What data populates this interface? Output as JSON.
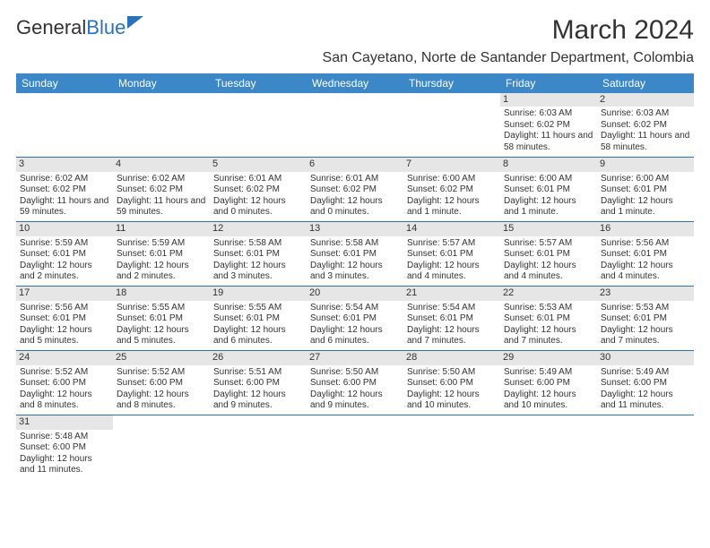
{
  "logo": {
    "part1": "General",
    "part2": "Blue"
  },
  "title": "March 2024",
  "location": "San Cayetano, Norte de Santander Department, Colombia",
  "colors": {
    "header_bg": "#3b87c8",
    "header_text": "#ffffff",
    "daynum_bg": "#e6e6e6",
    "row_border": "#2a73b8",
    "text": "#333333",
    "logo_blue": "#2a73b8"
  },
  "weekdays": [
    "Sunday",
    "Monday",
    "Tuesday",
    "Wednesday",
    "Thursday",
    "Friday",
    "Saturday"
  ],
  "weeks": [
    [
      {
        "n": "",
        "sr": "",
        "ss": "",
        "dl": ""
      },
      {
        "n": "",
        "sr": "",
        "ss": "",
        "dl": ""
      },
      {
        "n": "",
        "sr": "",
        "ss": "",
        "dl": ""
      },
      {
        "n": "",
        "sr": "",
        "ss": "",
        "dl": ""
      },
      {
        "n": "",
        "sr": "",
        "ss": "",
        "dl": ""
      },
      {
        "n": "1",
        "sr": "Sunrise: 6:03 AM",
        "ss": "Sunset: 6:02 PM",
        "dl": "Daylight: 11 hours and 58 minutes."
      },
      {
        "n": "2",
        "sr": "Sunrise: 6:03 AM",
        "ss": "Sunset: 6:02 PM",
        "dl": "Daylight: 11 hours and 58 minutes."
      }
    ],
    [
      {
        "n": "3",
        "sr": "Sunrise: 6:02 AM",
        "ss": "Sunset: 6:02 PM",
        "dl": "Daylight: 11 hours and 59 minutes."
      },
      {
        "n": "4",
        "sr": "Sunrise: 6:02 AM",
        "ss": "Sunset: 6:02 PM",
        "dl": "Daylight: 11 hours and 59 minutes."
      },
      {
        "n": "5",
        "sr": "Sunrise: 6:01 AM",
        "ss": "Sunset: 6:02 PM",
        "dl": "Daylight: 12 hours and 0 minutes."
      },
      {
        "n": "6",
        "sr": "Sunrise: 6:01 AM",
        "ss": "Sunset: 6:02 PM",
        "dl": "Daylight: 12 hours and 0 minutes."
      },
      {
        "n": "7",
        "sr": "Sunrise: 6:00 AM",
        "ss": "Sunset: 6:02 PM",
        "dl": "Daylight: 12 hours and 1 minute."
      },
      {
        "n": "8",
        "sr": "Sunrise: 6:00 AM",
        "ss": "Sunset: 6:01 PM",
        "dl": "Daylight: 12 hours and 1 minute."
      },
      {
        "n": "9",
        "sr": "Sunrise: 6:00 AM",
        "ss": "Sunset: 6:01 PM",
        "dl": "Daylight: 12 hours and 1 minute."
      }
    ],
    [
      {
        "n": "10",
        "sr": "Sunrise: 5:59 AM",
        "ss": "Sunset: 6:01 PM",
        "dl": "Daylight: 12 hours and 2 minutes."
      },
      {
        "n": "11",
        "sr": "Sunrise: 5:59 AM",
        "ss": "Sunset: 6:01 PM",
        "dl": "Daylight: 12 hours and 2 minutes."
      },
      {
        "n": "12",
        "sr": "Sunrise: 5:58 AM",
        "ss": "Sunset: 6:01 PM",
        "dl": "Daylight: 12 hours and 3 minutes."
      },
      {
        "n": "13",
        "sr": "Sunrise: 5:58 AM",
        "ss": "Sunset: 6:01 PM",
        "dl": "Daylight: 12 hours and 3 minutes."
      },
      {
        "n": "14",
        "sr": "Sunrise: 5:57 AM",
        "ss": "Sunset: 6:01 PM",
        "dl": "Daylight: 12 hours and 4 minutes."
      },
      {
        "n": "15",
        "sr": "Sunrise: 5:57 AM",
        "ss": "Sunset: 6:01 PM",
        "dl": "Daylight: 12 hours and 4 minutes."
      },
      {
        "n": "16",
        "sr": "Sunrise: 5:56 AM",
        "ss": "Sunset: 6:01 PM",
        "dl": "Daylight: 12 hours and 4 minutes."
      }
    ],
    [
      {
        "n": "17",
        "sr": "Sunrise: 5:56 AM",
        "ss": "Sunset: 6:01 PM",
        "dl": "Daylight: 12 hours and 5 minutes."
      },
      {
        "n": "18",
        "sr": "Sunrise: 5:55 AM",
        "ss": "Sunset: 6:01 PM",
        "dl": "Daylight: 12 hours and 5 minutes."
      },
      {
        "n": "19",
        "sr": "Sunrise: 5:55 AM",
        "ss": "Sunset: 6:01 PM",
        "dl": "Daylight: 12 hours and 6 minutes."
      },
      {
        "n": "20",
        "sr": "Sunrise: 5:54 AM",
        "ss": "Sunset: 6:01 PM",
        "dl": "Daylight: 12 hours and 6 minutes."
      },
      {
        "n": "21",
        "sr": "Sunrise: 5:54 AM",
        "ss": "Sunset: 6:01 PM",
        "dl": "Daylight: 12 hours and 7 minutes."
      },
      {
        "n": "22",
        "sr": "Sunrise: 5:53 AM",
        "ss": "Sunset: 6:01 PM",
        "dl": "Daylight: 12 hours and 7 minutes."
      },
      {
        "n": "23",
        "sr": "Sunrise: 5:53 AM",
        "ss": "Sunset: 6:01 PM",
        "dl": "Daylight: 12 hours and 7 minutes."
      }
    ],
    [
      {
        "n": "24",
        "sr": "Sunrise: 5:52 AM",
        "ss": "Sunset: 6:00 PM",
        "dl": "Daylight: 12 hours and 8 minutes."
      },
      {
        "n": "25",
        "sr": "Sunrise: 5:52 AM",
        "ss": "Sunset: 6:00 PM",
        "dl": "Daylight: 12 hours and 8 minutes."
      },
      {
        "n": "26",
        "sr": "Sunrise: 5:51 AM",
        "ss": "Sunset: 6:00 PM",
        "dl": "Daylight: 12 hours and 9 minutes."
      },
      {
        "n": "27",
        "sr": "Sunrise: 5:50 AM",
        "ss": "Sunset: 6:00 PM",
        "dl": "Daylight: 12 hours and 9 minutes."
      },
      {
        "n": "28",
        "sr": "Sunrise: 5:50 AM",
        "ss": "Sunset: 6:00 PM",
        "dl": "Daylight: 12 hours and 10 minutes."
      },
      {
        "n": "29",
        "sr": "Sunrise: 5:49 AM",
        "ss": "Sunset: 6:00 PM",
        "dl": "Daylight: 12 hours and 10 minutes."
      },
      {
        "n": "30",
        "sr": "Sunrise: 5:49 AM",
        "ss": "Sunset: 6:00 PM",
        "dl": "Daylight: 12 hours and 11 minutes."
      }
    ],
    [
      {
        "n": "31",
        "sr": "Sunrise: 5:48 AM",
        "ss": "Sunset: 6:00 PM",
        "dl": "Daylight: 12 hours and 11 minutes."
      },
      {
        "n": "",
        "sr": "",
        "ss": "",
        "dl": ""
      },
      {
        "n": "",
        "sr": "",
        "ss": "",
        "dl": ""
      },
      {
        "n": "",
        "sr": "",
        "ss": "",
        "dl": ""
      },
      {
        "n": "",
        "sr": "",
        "ss": "",
        "dl": ""
      },
      {
        "n": "",
        "sr": "",
        "ss": "",
        "dl": ""
      },
      {
        "n": "",
        "sr": "",
        "ss": "",
        "dl": ""
      }
    ]
  ]
}
